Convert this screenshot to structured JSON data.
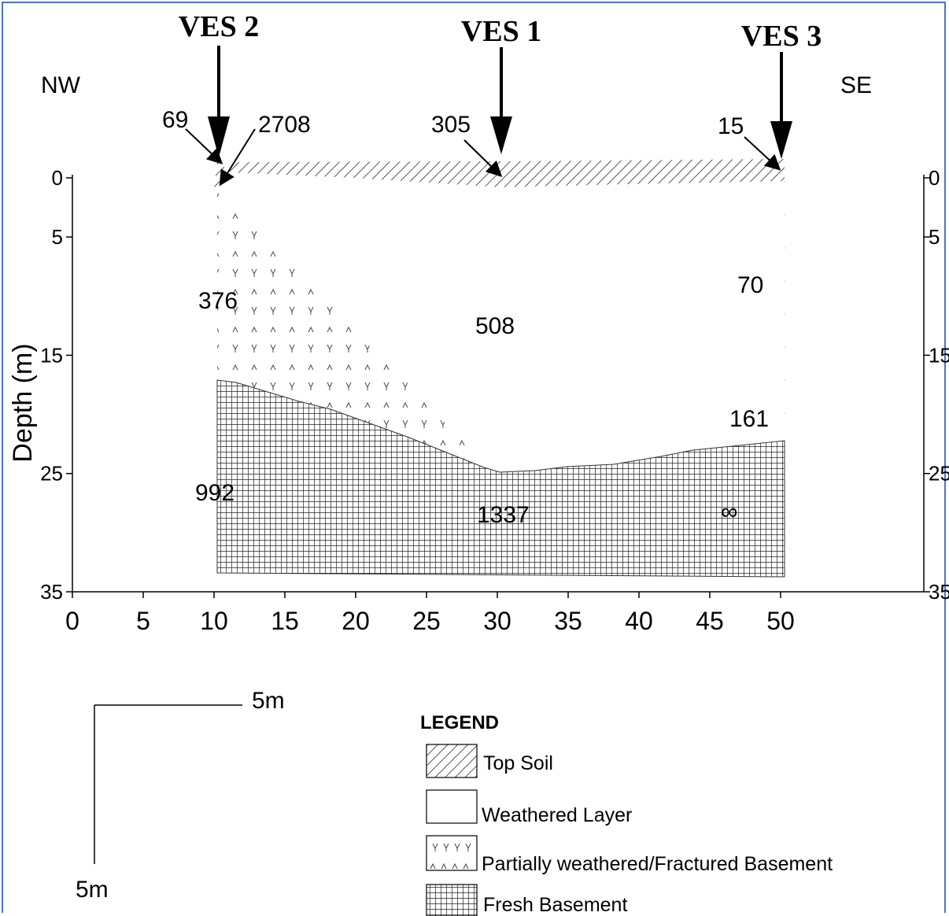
{
  "ves": [
    {
      "label": "VES 2"
    },
    {
      "label": "VES 1"
    },
    {
      "label": "VES 3"
    }
  ],
  "direction": {
    "left": "NW",
    "right": "SE"
  },
  "yaxis_label": "Depth (m)",
  "yticks": [
    "0",
    "5",
    "15",
    "25",
    "35"
  ],
  "xticks": [
    "0",
    "5",
    "10",
    "15",
    "20",
    "25",
    "30",
    "35",
    "40",
    "45",
    "50"
  ],
  "resistivity": {
    "topsoil_ves2_a": "69",
    "topsoil_ves2_b": "2708",
    "topsoil_ves1": "305",
    "topsoil_ves3": "15",
    "partial_ves2": "376",
    "weathered_ves1": "508",
    "weathered_ves3": "70",
    "weathered_ves3_lower": "161",
    "fresh_ves2": "992",
    "fresh_ves1": "1337",
    "fresh_ves3": "∞"
  },
  "scale": {
    "horizontal": "5m",
    "vertical": "5m"
  },
  "legend": {
    "title": "LEGEND",
    "items": [
      {
        "label": "Top Soil"
      },
      {
        "label": "Weathered Layer"
      },
      {
        "label": "Partially weathered/Fractured Basement"
      },
      {
        "label": "Fresh Basement"
      }
    ]
  }
}
